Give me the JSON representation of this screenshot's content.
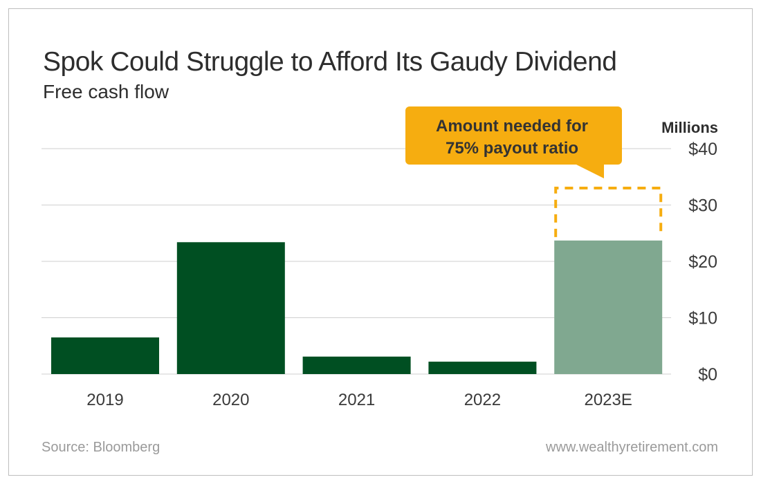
{
  "chart_data": {
    "type": "bar",
    "title": "Spok Could Struggle to Afford Its Gaudy Dividend",
    "subtitle": "Free cash flow",
    "ylabel": "Millions",
    "categories": [
      "2019",
      "2020",
      "2021",
      "2022",
      "2023E"
    ],
    "values": [
      6.5,
      23.4,
      3.1,
      2.2,
      23.7
    ],
    "estimate_category": "2023E",
    "target": {
      "category": "2023E",
      "value": 33,
      "annotation": "Amount needed for 75% payout ratio",
      "annotation_lines": [
        "Amount needed for",
        "75% payout ratio"
      ]
    },
    "ylim": [
      0,
      40
    ],
    "yticks": [
      0,
      10,
      20,
      30,
      40
    ],
    "ytick_labels": [
      "$0",
      "$10",
      "$20",
      "$30",
      "$40"
    ],
    "grid": true,
    "colors": {
      "actual": "#004f22",
      "estimate": "#80a890",
      "target": "#f6ad10",
      "annotation_bg": "#f6ad10"
    },
    "source": "Source: Bloomberg",
    "website": "www.wealthyretirement.com"
  }
}
